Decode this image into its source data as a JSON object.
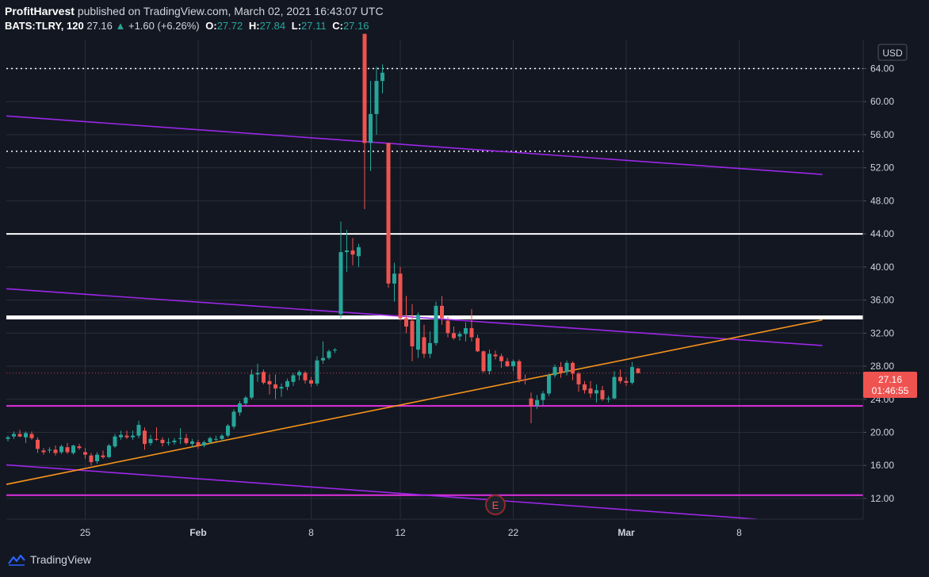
{
  "header": {
    "author": "ProfitHarvest",
    "published_text": "published on TradingView.com, March 02, 2021 16:43:07 UTC",
    "symbol": "BATS:TLRY, 120",
    "last": "27.16",
    "change": "+1.60 (+6.26%)",
    "open_label": "O:",
    "open": "27.72",
    "high_label": "H:",
    "high": "27.84",
    "low_label": "L:",
    "low": "27.11",
    "close_label": "C:",
    "close": "27.16"
  },
  "footer": {
    "brand": "TradingView"
  },
  "price_badge": {
    "price": "27.16",
    "countdown": "01:46:55"
  },
  "currency": "USD",
  "event_marker": "E",
  "colors": {
    "background": "#131722",
    "up": "#26a69a",
    "down": "#ef5350",
    "grid": "#2a2e39",
    "orange": "#f7931a",
    "purple": "#9c27e8",
    "magenta": "#e030e0",
    "white": "#ffffff"
  },
  "chart_data": {
    "type": "candlestick",
    "y_axis": {
      "ticks": [
        "12.00",
        "16.00",
        "20.00",
        "24.00",
        "28.00",
        "32.00",
        "36.00",
        "40.00",
        "44.00",
        "48.00",
        "52.00",
        "56.00",
        "60.00",
        "64.00"
      ],
      "ylim": [
        9.5,
        67.5
      ],
      "side": "right"
    },
    "x_axis": {
      "ticks": [
        {
          "label": "25",
          "slot": 13
        },
        {
          "label": "Feb",
          "slot": 32
        },
        {
          "label": "8",
          "slot": 51
        },
        {
          "label": "12",
          "slot": 66
        },
        {
          "label": "22",
          "slot": 85
        },
        {
          "label": "Mar",
          "slot": 104
        },
        {
          "label": "8",
          "slot": 123
        }
      ],
      "slots": 137
    },
    "candles": [
      [
        19.2,
        19.6,
        18.9,
        19.4
      ],
      [
        19.5,
        20.1,
        19.2,
        19.8
      ],
      [
        19.8,
        20.3,
        19.4,
        19.5
      ],
      [
        19.4,
        20.1,
        18.7,
        19.9
      ],
      [
        19.8,
        20.1,
        19.1,
        19.3
      ],
      [
        19.1,
        19.4,
        17.5,
        18.0
      ],
      [
        17.8,
        18.1,
        17.3,
        17.6
      ],
      [
        17.8,
        18.2,
        17.5,
        17.9
      ],
      [
        17.9,
        18.4,
        17.2,
        17.5
      ],
      [
        17.6,
        18.5,
        17.4,
        18.3
      ],
      [
        18.2,
        18.7,
        17.4,
        17.6
      ],
      [
        17.5,
        18.5,
        17.3,
        18.4
      ],
      [
        18.3,
        18.6,
        17.9,
        18.1
      ],
      [
        17.6,
        18.1,
        16.8,
        17.3
      ],
      [
        17.2,
        17.5,
        16.0,
        16.4
      ],
      [
        16.5,
        17.6,
        16.2,
        17.3
      ],
      [
        17.2,
        17.8,
        16.8,
        17.0
      ],
      [
        17.0,
        18.6,
        16.9,
        18.4
      ],
      [
        18.3,
        19.8,
        18.1,
        19.5
      ],
      [
        19.4,
        20.2,
        19.1,
        19.7
      ],
      [
        19.6,
        20.2,
        19.2,
        19.4
      ],
      [
        19.4,
        20.2,
        19.1,
        19.6
      ],
      [
        19.6,
        21.4,
        19.3,
        20.9
      ],
      [
        20.2,
        20.6,
        17.9,
        18.6
      ],
      [
        18.7,
        19.7,
        18.4,
        19.2
      ],
      [
        19.2,
        20.6,
        19.0,
        19.1
      ],
      [
        19.1,
        19.4,
        18.3,
        18.7
      ],
      [
        18.7,
        19.3,
        18.4,
        18.8
      ],
      [
        18.8,
        19.3,
        18.5,
        19.0
      ],
      [
        19.2,
        20.5,
        18.6,
        19.3
      ],
      [
        19.3,
        19.8,
        18.5,
        18.7
      ],
      [
        18.6,
        19.2,
        18.2,
        18.9
      ],
      [
        18.8,
        19.1,
        18.0,
        18.4
      ],
      [
        18.4,
        19.0,
        18.2,
        18.8
      ],
      [
        18.8,
        19.5,
        18.6,
        19.3
      ],
      [
        19.2,
        19.6,
        18.9,
        19.2
      ],
      [
        19.2,
        19.8,
        18.9,
        19.6
      ],
      [
        19.6,
        21.0,
        19.4,
        20.8
      ],
      [
        20.7,
        22.8,
        20.4,
        22.5
      ],
      [
        22.4,
        23.8,
        22.0,
        23.5
      ],
      [
        23.5,
        24.4,
        23.1,
        24.2
      ],
      [
        24.2,
        27.6,
        24.0,
        27.0
      ],
      [
        27.0,
        28.3,
        26.1,
        27.2
      ],
      [
        27.3,
        27.6,
        25.8,
        26.0
      ],
      [
        26.2,
        27.0,
        24.6,
        25.8
      ],
      [
        25.8,
        27.0,
        24.0,
        25.3
      ],
      [
        25.3,
        25.9,
        24.3,
        25.5
      ],
      [
        25.5,
        26.5,
        25.1,
        26.2
      ],
      [
        26.1,
        27.2,
        25.6,
        26.9
      ],
      [
        26.9,
        27.5,
        26.3,
        27.3
      ],
      [
        27.2,
        27.4,
        25.9,
        26.3
      ],
      [
        26.3,
        26.7,
        25.5,
        25.9
      ],
      [
        25.9,
        29.2,
        25.6,
        28.7
      ],
      [
        28.7,
        31.0,
        28.3,
        29.0
      ],
      [
        29.0,
        30.0,
        28.8,
        29.8
      ],
      [
        29.9,
        30.2,
        29.6,
        30.0
      ],
      [
        34.3,
        45.5,
        33.8,
        41.8
      ],
      [
        41.8,
        44.5,
        39.4,
        42.0
      ],
      [
        42.0,
        43.5,
        40.2,
        41.5
      ],
      [
        41.3,
        42.8,
        40.0,
        42.4
      ],
      [
        68.2,
        68.2,
        47.0,
        55.0
      ],
      [
        55.0,
        62.5,
        51.6,
        58.5
      ],
      [
        58.5,
        64.2,
        56.0,
        62.5
      ],
      [
        62.5,
        64.5,
        61.0,
        63.5
      ],
      [
        55.0,
        55.0,
        37.5,
        38.0
      ],
      [
        38.0,
        40.5,
        35.8,
        39.2
      ],
      [
        39.2,
        40.0,
        33.5,
        33.8
      ],
      [
        33.8,
        36.5,
        32.0,
        32.8
      ],
      [
        33.5,
        35.5,
        28.6,
        30.4
      ],
      [
        30.0,
        34.5,
        29.0,
        34.2
      ],
      [
        31.5,
        33.0,
        29.0,
        29.5
      ],
      [
        29.5,
        32.2,
        29.0,
        30.8
      ],
      [
        30.8,
        35.8,
        30.5,
        35.3
      ],
      [
        35.3,
        36.5,
        33.0,
        33.8
      ],
      [
        33.5,
        34.0,
        31.5,
        32.0
      ],
      [
        32.0,
        32.8,
        31.2,
        31.4
      ],
      [
        31.6,
        32.2,
        31.1,
        31.9
      ],
      [
        31.9,
        33.3,
        31.0,
        32.6
      ],
      [
        32.6,
        34.9,
        31.0,
        31.5
      ],
      [
        31.4,
        31.8,
        29.7,
        29.8
      ],
      [
        29.8,
        29.9,
        27.2,
        27.4
      ],
      [
        27.4,
        30.0,
        27.0,
        29.5
      ],
      [
        29.4,
        29.9,
        28.8,
        29.2
      ],
      [
        29.2,
        29.5,
        27.8,
        28.6
      ],
      [
        28.6,
        29.0,
        27.9,
        28.0
      ],
      [
        28.0,
        28.8,
        27.4,
        28.6
      ],
      [
        28.6,
        28.8,
        26.0,
        26.4
      ],
      [
        26.4,
        27.0,
        25.8,
        26.3
      ],
      [
        24.1,
        24.8,
        21.1,
        23.2
      ],
      [
        23.2,
        24.5,
        22.8,
        23.9
      ],
      [
        23.9,
        25.0,
        23.3,
        24.7
      ],
      [
        24.7,
        27.1,
        24.4,
        26.9
      ],
      [
        26.9,
        28.2,
        26.6,
        27.9
      ],
      [
        27.9,
        28.5,
        26.6,
        27.3
      ],
      [
        27.3,
        28.7,
        26.9,
        28.4
      ],
      [
        28.4,
        28.6,
        26.3,
        27.1
      ],
      [
        27.1,
        27.3,
        24.9,
        25.8
      ],
      [
        25.8,
        26.2,
        24.7,
        25.1
      ],
      [
        25.3,
        26.2,
        24.2,
        24.7
      ],
      [
        24.7,
        25.8,
        23.6,
        25.1
      ],
      [
        25.1,
        25.6,
        23.8,
        24.0
      ],
      [
        24.0,
        24.4,
        23.6,
        24.1
      ],
      [
        24.1,
        27.4,
        24.0,
        26.7
      ],
      [
        26.7,
        27.6,
        25.9,
        26.2
      ],
      [
        26.2,
        26.7,
        25.6,
        26.0
      ],
      [
        26.0,
        28.5,
        25.8,
        27.9
      ],
      [
        27.72,
        27.84,
        27.11,
        27.16
      ]
    ],
    "horizontal_lines": [
      {
        "price": 64.0,
        "style": "dotted",
        "color": "#ffffff"
      },
      {
        "price": 54.0,
        "style": "dotted",
        "color": "#ffffff"
      },
      {
        "price": 44.0,
        "style": "solid",
        "color": "#ffffff",
        "width": 2
      },
      {
        "price": 33.9,
        "style": "solid",
        "color": "#ffffff",
        "width": 5
      },
      {
        "price": 23.2,
        "style": "solid",
        "color": "#e030e0",
        "width": 2
      },
      {
        "price": 12.4,
        "style": "solid",
        "color": "#e030e0",
        "width": 2
      }
    ],
    "trend_lines": [
      {
        "from": [
          -1,
          58.3
        ],
        "to": [
          137,
          51.2
        ],
        "color": "#9c27e8"
      },
      {
        "from": [
          -1,
          37.4
        ],
        "to": [
          137,
          30.5
        ],
        "color": "#9c27e8"
      },
      {
        "from": [
          -1,
          16.1
        ],
        "to": [
          126,
          9.5
        ],
        "color": "#9c27e8"
      },
      {
        "from": [
          -1,
          13.6
        ],
        "to": [
          137,
          33.6
        ],
        "color": "#f7931a"
      }
    ]
  }
}
